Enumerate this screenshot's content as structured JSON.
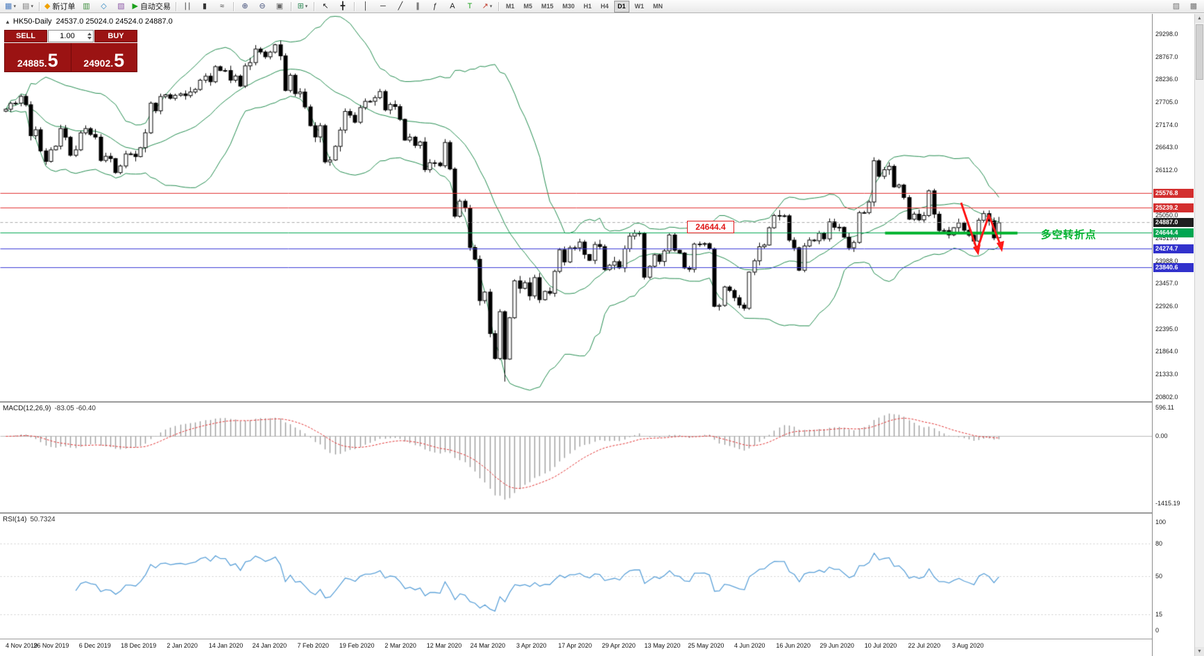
{
  "toolbar": {
    "timeframes": [
      "M1",
      "M5",
      "M15",
      "M30",
      "H1",
      "H4",
      "D1",
      "W1",
      "MN"
    ],
    "active_timeframe": "D1",
    "items": [
      {
        "type": "icon",
        "name": "new-chart-icon",
        "glyph": "▦",
        "color": "#4d7dbf",
        "caret": true
      },
      {
        "type": "icon",
        "name": "profiles-icon",
        "glyph": "▤",
        "color": "#7d7d7d",
        "caret": true
      },
      {
        "type": "sep"
      },
      {
        "type": "button",
        "name": "new-order-button",
        "glyph": "◆",
        "color": "#f0a202",
        "label": "新订单"
      },
      {
        "type": "icon",
        "name": "market-watch-icon",
        "glyph": "▥",
        "color": "#3f8f3f"
      },
      {
        "type": "icon",
        "name": "data-window-icon",
        "glyph": "◇",
        "color": "#2e86c1"
      },
      {
        "type": "icon",
        "name": "navigator-icon",
        "glyph": "▧",
        "color": "#8e5aa8"
      },
      {
        "type": "button",
        "name": "auto-trading-button",
        "glyph": "▶",
        "color": "#1ca11c",
        "label": "自动交易"
      },
      {
        "type": "sep"
      },
      {
        "type": "icon",
        "name": "bar-chart-mode-icon",
        "glyph": "∣∣",
        "color": "#333333"
      },
      {
        "type": "icon",
        "name": "candlestick-mode-icon",
        "glyph": "▮",
        "color": "#333333"
      },
      {
        "type": "icon",
        "name": "line-chart-mode-icon",
        "glyph": "≈",
        "color": "#333333"
      },
      {
        "type": "sep"
      },
      {
        "type": "icon",
        "name": "zoom-in-icon",
        "glyph": "⊕",
        "color": "#44507a"
      },
      {
        "type": "icon",
        "name": "zoom-out-icon",
        "glyph": "⊖",
        "color": "#44507a"
      },
      {
        "type": "icon",
        "name": "tile-windows-icon",
        "glyph": "▣",
        "color": "#666666"
      },
      {
        "type": "sep"
      },
      {
        "type": "icon",
        "name": "indicators-icon",
        "glyph": "⊞",
        "color": "#2e8b57",
        "caret": true
      },
      {
        "type": "sep"
      },
      {
        "type": "icon",
        "name": "cursor-icon",
        "glyph": "↖",
        "color": "#222222"
      },
      {
        "type": "icon",
        "name": "crosshair-icon",
        "glyph": "╋",
        "color": "#222222"
      },
      {
        "type": "sep"
      },
      {
        "type": "icon",
        "name": "vertical-line-icon",
        "glyph": "│",
        "color": "#222222"
      },
      {
        "type": "icon",
        "name": "horizontal-line-icon",
        "glyph": "─",
        "color": "#222222"
      },
      {
        "type": "icon",
        "name": "trendline-icon",
        "glyph": "╱",
        "color": "#222222"
      },
      {
        "type": "icon",
        "name": "channel-icon",
        "glyph": "∥",
        "color": "#222222"
      },
      {
        "type": "icon",
        "name": "fibonacci-icon",
        "glyph": "ƒ",
        "color": "#222222"
      },
      {
        "type": "icon",
        "name": "text-icon",
        "glyph": "A",
        "color": "#222222"
      },
      {
        "type": "icon",
        "name": "text-label-icon",
        "glyph": "T",
        "color": "#1ca11c"
      },
      {
        "type": "icon",
        "name": "arrows-icon",
        "glyph": "↗",
        "color": "#c0392b",
        "caret": true
      },
      {
        "type": "sep"
      },
      {
        "type": "tf-group"
      },
      {
        "type": "spacer"
      },
      {
        "type": "icon",
        "name": "chart-shift-icon",
        "glyph": "▨",
        "color": "#777777"
      },
      {
        "type": "icon",
        "name": "auto-scroll-icon",
        "glyph": "▩",
        "color": "#777777"
      }
    ]
  },
  "chart": {
    "toggle_glyph": "▲",
    "title_symbol": "HK50-Daily",
    "title_ohlc": "24537.0 25024.0 24524.0 24887.0",
    "ylim": [
      20700,
      29770
    ],
    "axis_ticks": [
      "29298.0",
      "28767.0",
      "28236.0",
      "27705.0",
      "27174.0",
      "26643.0",
      "26112.0",
      "25581.0",
      "25050.0",
      "24519.0",
      "23988.0",
      "23457.0",
      "22926.0",
      "22395.0",
      "21864.0",
      "21333.0",
      "20802.0"
    ],
    "trade_panel": {
      "sell_label": "SELL",
      "buy_label": "BUY",
      "volume": "1.00",
      "bid": "24885.5",
      "ask": "24902.5",
      "bid_int": "24885.",
      "bid_big": "5",
      "ask_int": "24902.",
      "ask_big": "5"
    }
  },
  "indicators": {
    "macd": {
      "label": "MACD(12,26,9)",
      "values": "-83.05 -60.40",
      "axis": [
        "596.11",
        "0.00",
        "-1415.19"
      ],
      "axis_values": [
        596.11,
        0,
        -1415.19
      ],
      "ylim": [
        -1600,
        700
      ]
    },
    "rsi": {
      "label": "RSI(14)",
      "value": "50.7324",
      "axis": [
        "100",
        "80",
        "50",
        "15",
        "0"
      ],
      "axis_values": [
        100,
        80,
        50,
        15,
        0
      ],
      "levels": [
        80,
        50,
        15
      ],
      "range": [
        0,
        100
      ]
    }
  },
  "time_axis": {
    "labels": [
      "4 Nov 2019",
      "26 Nov 2019",
      "6 Dec 2019",
      "18 Dec 2019",
      "2 Jan 2020",
      "14 Jan 2020",
      "24 Jan 2020",
      "7 Feb 2020",
      "19 Feb 2020",
      "2 Mar 2020",
      "12 Mar 2020",
      "24 Mar 2020",
      "3 Apr 2020",
      "17 Apr 2020",
      "29 Apr 2020",
      "13 May 2020",
      "25 May 2020",
      "4 Jun 2020",
      "16 Jun 2020",
      "29 Jun 2020",
      "10 Jul 2020",
      "22 Jul 2020",
      "3 Aug 2020"
    ]
  },
  "scrollbar": {
    "up_glyph": "▲",
    "down_glyph": "▼"
  },
  "chart_data": {
    "type": "candlestick",
    "symbol": "HK50",
    "timeframe": "Daily",
    "callout": "24644.4",
    "annotation": "多空转折点",
    "closes": [
      27547,
      27683,
      27688,
      27847,
      27651,
      26926,
      27065,
      26571,
      26323,
      26595,
      26681,
      27093,
      26889,
      26466,
      26595,
      26993,
      27093,
      26954,
      26893,
      26346,
      26444,
      26391,
      26062,
      26217,
      26498,
      26494,
      26436,
      26645,
      26994,
      27687,
      27508,
      27843,
      27884,
      27800,
      27871,
      27906,
      27864,
      27949,
      28008,
      28225,
      28319,
      28189,
      28543,
      28451,
      28452,
      28226,
      28322,
      28087,
      28561,
      28638,
      28954,
      28885,
      28773,
      28883,
      29056,
      28796,
      27985,
      28341,
      27910,
      27950,
      27600,
      27160,
      26897,
      27161,
      26313,
      26357,
      26676,
      27058,
      27494,
      27405,
      27241,
      27584,
      27730,
      27731,
      27816,
      27960,
      27530,
      27656,
      27609,
      27309,
      26821,
      26893,
      26697,
      26779,
      26130,
      26292,
      26285,
      26222,
      26768,
      26146,
      25040,
      25392,
      25232,
      24309,
      24033,
      23064,
      23264,
      22292,
      21709,
      22805,
      21696,
      22663,
      23527,
      23352,
      23484,
      23175,
      23603,
      23085,
      23280,
      23236,
      23749,
      24253,
      23970,
      24300,
      24301,
      24435,
      24145,
      24006,
      24380,
      24330,
      23793,
      23893,
      23977,
      23831,
      24280,
      24575,
      24643,
      24644,
      23613,
      23868,
      24137,
      23981,
      24230,
      24602,
      24245,
      24180,
      23829,
      23797,
      24388,
      24389,
      24399,
      24280,
      22930,
      22952,
      23384,
      23301,
      23132,
      22961,
      22885,
      23732,
      23996,
      24326,
      24366,
      24770,
      25057,
      25049,
      25050,
      24480,
      24301,
      23776,
      24344,
      24481,
      24465,
      24643,
      24511,
      24907,
      24781,
      24782,
      24549,
      24301,
      24427,
      25124,
      25125,
      25373,
      26339,
      25975,
      26129,
      26210,
      25727,
      25772,
      25478,
      24970,
      25089,
      24955,
      25057,
      25635,
      25089,
      24705,
      24706,
      24603,
      24773,
      24883,
      24711,
      24595,
      24458,
      24946,
      25102,
      24930,
      24531,
      24887
    ],
    "current_bar": {
      "open": 24537.0,
      "high": 25024.0,
      "low": 24524.0,
      "close": 24887.0
    },
    "bollinger": {
      "period": 20,
      "deviation": 2,
      "color": "#1f8a4c"
    },
    "macd_params": {
      "fast": 12,
      "slow": 26,
      "signal": 9
    },
    "rsi_period": 14,
    "levels": [
      {
        "value": 25576.8,
        "label": "25576.8",
        "line": "#e03030",
        "badge": "#d32f2f",
        "style": "solid"
      },
      {
        "value": 25239.2,
        "label": "25239.2",
        "line": "#e03030",
        "badge": "#d32f2f",
        "style": "solid"
      },
      {
        "value": 24887.0,
        "label": "24887.0",
        "line": "#a8a8a8",
        "badge": "#1f1f1f",
        "style": "dash"
      },
      {
        "value": 24644.4,
        "label": "24644.4",
        "line": "#00a651",
        "badge": "#00a651",
        "style": "solid"
      },
      {
        "value": 24274.7,
        "label": "24274.7",
        "line": "#3b3bd6",
        "badge": "#3232cc",
        "style": "solid"
      },
      {
        "value": 23840.6,
        "label": "23840.6",
        "line": "#3b3bd6",
        "badge": "#3232cc",
        "style": "solid"
      }
    ],
    "highlight_segment": {
      "value": 24644.4,
      "from": 0.768,
      "to": 0.883,
      "color": "#00b22d",
      "width": 4
    }
  }
}
